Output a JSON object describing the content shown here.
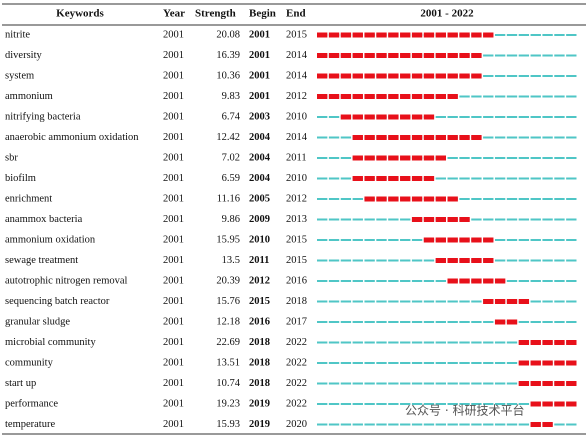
{
  "table": {
    "headers": [
      "Keywords",
      "Year",
      "Strength",
      "Begin",
      "End"
    ],
    "timeline": {
      "label": "2001 - 2022",
      "start": 2001,
      "end": 2022
    },
    "rows": [
      [
        "nitrite",
        2001,
        20.08,
        2001,
        2015
      ],
      [
        "diversity",
        2001,
        16.39,
        2001,
        2014
      ],
      [
        "system",
        2001,
        10.36,
        2001,
        2014
      ],
      [
        "ammonium",
        2001,
        9.83,
        2001,
        2012
      ],
      [
        "nitrifying bacteria",
        2001,
        6.74,
        2003,
        2010
      ],
      [
        "anaerobic ammonium oxidation",
        2001,
        12.42,
        2004,
        2014
      ],
      [
        "sbr",
        2001,
        7.02,
        2004,
        2011
      ],
      [
        "biofilm",
        2001,
        6.59,
        2004,
        2010
      ],
      [
        "enrichment",
        2001,
        11.16,
        2005,
        2012
      ],
      [
        "anammox bacteria",
        2001,
        9.86,
        2009,
        2013
      ],
      [
        "ammonium oxidation",
        2001,
        15.95,
        2010,
        2015
      ],
      [
        "sewage treatment",
        2001,
        13.5,
        2011,
        2015
      ],
      [
        "autotrophic nitrogen removal",
        2001,
        20.39,
        2012,
        2016
      ],
      [
        "sequencing batch reactor",
        2001,
        15.76,
        2015,
        2018
      ],
      [
        "granular sludge",
        2001,
        12.18,
        2016,
        2017
      ],
      [
        "microbial community",
        2001,
        22.69,
        2018,
        2022
      ],
      [
        "community",
        2001,
        13.51,
        2018,
        2022
      ],
      [
        "start up",
        2001,
        10.74,
        2018,
        2022
      ],
      [
        "performance",
        2001,
        19.23,
        2019,
        2022
      ],
      [
        "temperature",
        2001,
        15.93,
        2019,
        2020
      ]
    ],
    "colors": {
      "burst": "#e8101a",
      "base": "#4fc6c6"
    }
  },
  "watermark": "公众号 · 科研技术平台"
}
